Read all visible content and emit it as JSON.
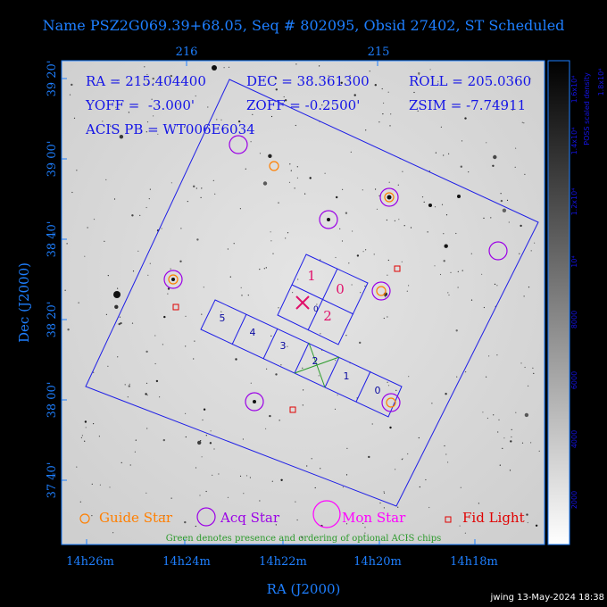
{
  "title": "Name PSZ2G069.39+68.05, Seq # 802095, Obsid 27402, ST Scheduled",
  "info": {
    "ra": "RA = 215.404400",
    "dec": "DEC = 38.361300",
    "roll": "ROLL = 205.0360",
    "yoff": "YOFF =  -3.000'",
    "zoff": "ZOFF = -0.2500'",
    "zsim": "ZSIM = -7.74911",
    "acis_pb": "ACIS PB = WT006E6034"
  },
  "axes": {
    "xlabel": "RA (J2000)",
    "ylabel": "Dec (J2000)",
    "ra_ticks_bottom": [
      "14h26m",
      "14h24m",
      "14h22m",
      "14h20m",
      "14h18m"
    ],
    "ra_ticks_top": [
      "216",
      "215"
    ],
    "dec_ticks": [
      "39 20'",
      "39 00'",
      "38 40'",
      "38 20'",
      "38 00'",
      "37 40'"
    ]
  },
  "colorbar": {
    "label": "POSS scaled density",
    "ticks": [
      "2000",
      "4000",
      "6000",
      "8000",
      "10⁴",
      "1.2x10⁴",
      "1.4x10⁴",
      "1.6x10⁴"
    ],
    "top_value": "1.8x10⁴"
  },
  "acis_chips": [
    "5",
    "4",
    "3",
    "2",
    "1",
    "0"
  ],
  "hrc_chips": [
    "1",
    "0",
    "2"
  ],
  "legend": {
    "guide": "Guide Star",
    "acq": "Acq Star",
    "mon": "Mon Star",
    "fid": "Fid Light",
    "note": "Green denotes presence and ordering of optional ACIS chips"
  },
  "colors": {
    "guide": "#ff7f00",
    "acq": "#9b00e6",
    "mon": "#ff00ff",
    "fid": "#e00000",
    "outline": "#1e1ee6",
    "axis": "#1e7fff"
  },
  "footer": "jwing 13-May-2024 18:38"
}
